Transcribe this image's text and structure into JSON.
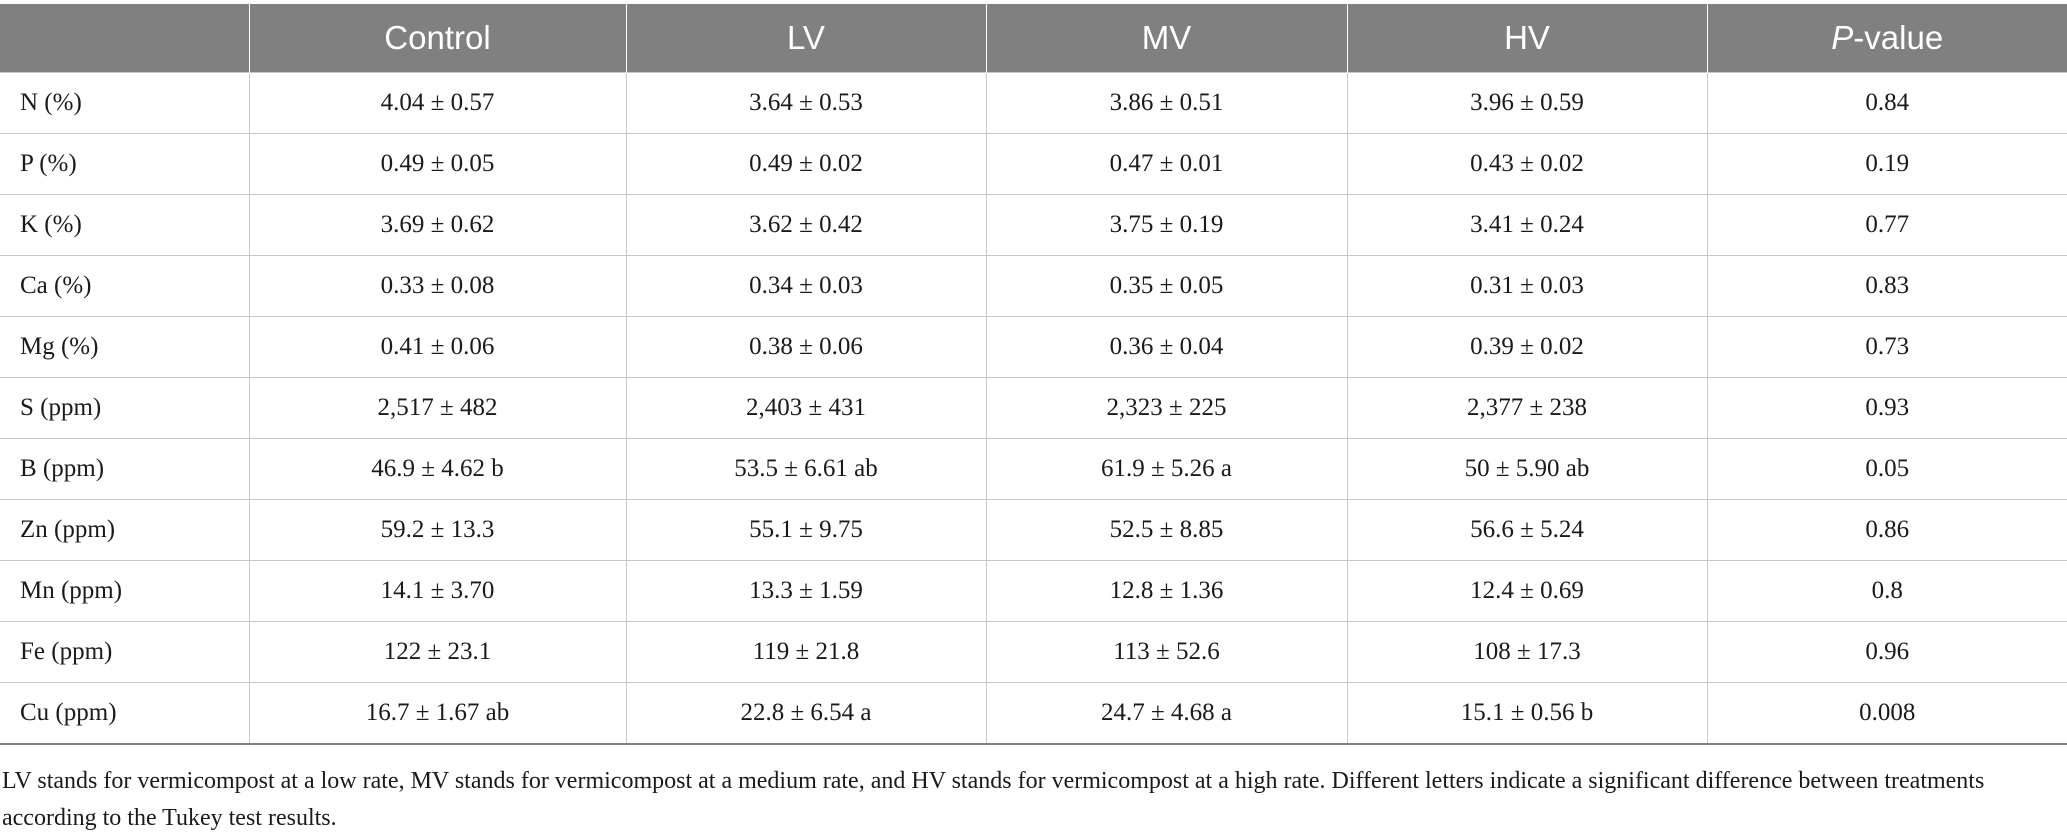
{
  "table": {
    "columns": [
      "",
      "Control",
      "LV",
      "MV",
      "HV"
    ],
    "pvalue_header": {
      "italic_part": "P",
      "rest": "-value"
    },
    "rows": [
      {
        "label": "N (%)",
        "control": "4.04 ± 0.57",
        "lv": "3.64 ± 0.53",
        "mv": "3.86 ± 0.51",
        "hv": "3.96 ± 0.59",
        "p": "0.84"
      },
      {
        "label": "P (%)",
        "control": "0.49 ± 0.05",
        "lv": "0.49 ± 0.02",
        "mv": "0.47 ± 0.01",
        "hv": "0.43 ± 0.02",
        "p": "0.19"
      },
      {
        "label": "K (%)",
        "control": "3.69 ± 0.62",
        "lv": "3.62 ± 0.42",
        "mv": "3.75 ± 0.19",
        "hv": "3.41 ± 0.24",
        "p": "0.77"
      },
      {
        "label": "Ca (%)",
        "control": "0.33 ± 0.08",
        "lv": "0.34 ± 0.03",
        "mv": "0.35 ± 0.05",
        "hv": "0.31 ± 0.03",
        "p": "0.83"
      },
      {
        "label": "Mg (%)",
        "control": "0.41 ± 0.06",
        "lv": "0.38 ± 0.06",
        "mv": "0.36 ± 0.04",
        "hv": "0.39 ± 0.02",
        "p": "0.73"
      },
      {
        "label": "S (ppm)",
        "control": "2,517 ± 482",
        "lv": "2,403 ± 431",
        "mv": "2,323 ± 225",
        "hv": "2,377 ± 238",
        "p": "0.93"
      },
      {
        "label": "B (ppm)",
        "control": "46.9 ± 4.62 b",
        "lv": "53.5 ± 6.61 ab",
        "mv": "61.9 ± 5.26 a",
        "hv": "50 ± 5.90 ab",
        "p": "0.05"
      },
      {
        "label": "Zn (ppm)",
        "control": "59.2 ± 13.3",
        "lv": "55.1 ± 9.75",
        "mv": "52.5 ± 8.85",
        "hv": "56.6 ± 5.24",
        "p": "0.86"
      },
      {
        "label": "Mn (ppm)",
        "control": "14.1 ± 3.70",
        "lv": "13.3 ± 1.59",
        "mv": "12.8 ± 1.36",
        "hv": "12.4 ± 0.69",
        "p": "0.8"
      },
      {
        "label": "Fe (ppm)",
        "control": "122 ± 23.1",
        "lv": "119 ± 21.8",
        "mv": "113 ± 52.6",
        "hv": "108 ± 17.3",
        "p": "0.96"
      },
      {
        "label": "Cu (ppm)",
        "control": "16.7 ± 1.67 ab",
        "lv": "22.8 ± 6.54 a",
        "mv": "24.7 ± 4.68 a",
        "hv": "15.1 ± 0.56 b",
        "p": "0.008"
      }
    ]
  },
  "footnote": "LV stands for vermicompost at a low rate, MV stands for vermicompost at a medium rate, and HV stands for vermicompost at a high rate. Different letters indicate a significant difference between treatments according to the Tukey test results.",
  "colors": {
    "header_bg": "#808080",
    "header_text": "#ffffff",
    "grid": "#c8c8c8",
    "text": "#1a1a1a"
  }
}
